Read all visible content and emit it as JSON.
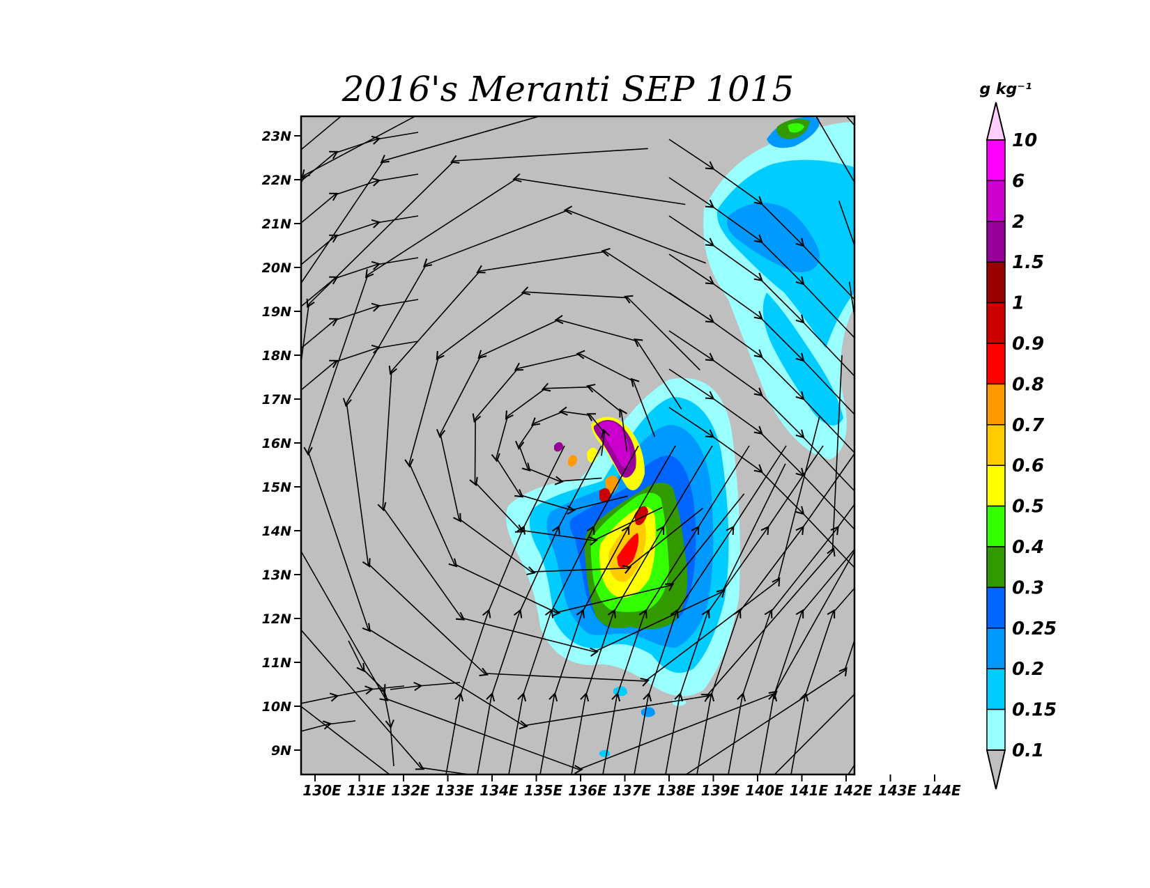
{
  "title": "2016's Meranti SEP 1015",
  "map": {
    "lat_labels": [
      "23N",
      "22N",
      "21N",
      "20N",
      "19N",
      "18N",
      "17N",
      "16N",
      "15N",
      "14N",
      "13N",
      "12N",
      "11N",
      "10N",
      "9N"
    ],
    "lat_values": [
      23,
      22,
      21,
      20,
      19,
      18,
      17,
      16,
      15,
      14,
      13,
      12,
      11,
      10,
      9
    ],
    "lon_labels": [
      "130E",
      "131E",
      "132E",
      "133E",
      "134E",
      "135E",
      "136E",
      "137E",
      "138E",
      "139E",
      "140E",
      "141E",
      "142E",
      "143E",
      "144E"
    ],
    "lon_values": [
      130,
      131,
      132,
      133,
      134,
      135,
      136,
      137,
      138,
      139,
      140,
      141,
      142,
      143,
      144
    ],
    "background_color": "#bfbfbf",
    "center": {
      "lon": 136.3,
      "lat": 16.0
    }
  },
  "colorbar": {
    "unit": "g kg⁻¹",
    "levels": [
      "10",
      "6",
      "2",
      "1.5",
      "1",
      "0.9",
      "0.8",
      "0.7",
      "0.6",
      "0.5",
      "0.4",
      "0.3",
      "0.25",
      "0.2",
      "0.15",
      "0.1"
    ],
    "colors": [
      "#ff00ff",
      "#cc00cc",
      "#990099",
      "#990000",
      "#cc0000",
      "#ff0000",
      "#ff9900",
      "#ffcc00",
      "#ffff00",
      "#33ff00",
      "#339900",
      "#0066ff",
      "#0099ff",
      "#00ccff",
      "#99ffff"
    ],
    "top_triangle_color": "#ffccff",
    "bottom_triangle_color": "#bfbfbf"
  }
}
